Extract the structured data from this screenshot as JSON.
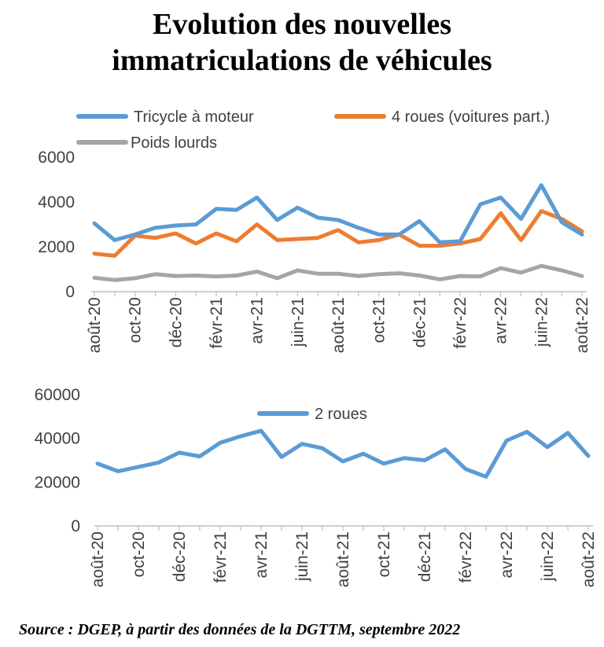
{
  "title_line1": "Evolution des nouvelles",
  "title_line2": "immatriculations de véhicules",
  "source": "Source : DGEP, à partir des données de la DGTTM, septembre 2022",
  "chart_data": [
    {
      "type": "line",
      "x": [
        "août-20",
        "sept-20",
        "oct-20",
        "nov-20",
        "déc-20",
        "janv-21",
        "févr-21",
        "mars-21",
        "avr-21",
        "mai-21",
        "juin-21",
        "juil-21",
        "août-21",
        "sept-21",
        "oct-21",
        "nov-21",
        "déc-21",
        "janv-22",
        "févr-22",
        "mars-22",
        "avr-22",
        "mai-22",
        "juin-22",
        "juil-22",
        "août-22"
      ],
      "tick_labels": [
        "août-20",
        "oct-20",
        "déc-20",
        "févr-21",
        "avr-21",
        "juin-21",
        "août-21",
        "oct-21",
        "déc-21",
        "févr-22",
        "avr-22",
        "juin-22",
        "août-22"
      ],
      "ylim": [
        0,
        6000
      ],
      "yticks": [
        "0",
        "2000",
        "4000",
        "6000"
      ],
      "legend_position": "top",
      "series": [
        {
          "name": "Tricycle à moteur",
          "color": "#5B9BD5",
          "values": [
            3050,
            2300,
            2550,
            2850,
            2950,
            3000,
            3700,
            3650,
            4200,
            3200,
            3750,
            3300,
            3200,
            2850,
            2550,
            2550,
            3150,
            2200,
            2250,
            3900,
            4200,
            3250,
            4750,
            3100,
            2550
          ]
        },
        {
          "name": "4 roues (voitures part.)",
          "color": "#ED7D31",
          "values": [
            1700,
            1600,
            2500,
            2400,
            2600,
            2150,
            2600,
            2250,
            3000,
            2300,
            2350,
            2400,
            2750,
            2200,
            2300,
            2550,
            2050,
            2050,
            2150,
            2350,
            3500,
            2300,
            3600,
            3250,
            2700
          ]
        },
        {
          "name": "Poids lourds",
          "color": "#A5A5A5",
          "values": [
            620,
            520,
            600,
            780,
            700,
            720,
            680,
            720,
            900,
            600,
            950,
            800,
            800,
            700,
            780,
            820,
            720,
            550,
            700,
            680,
            1050,
            850,
            1150,
            950,
            700
          ]
        }
      ]
    },
    {
      "type": "line",
      "x": [
        "août-20",
        "sept-20",
        "oct-20",
        "nov-20",
        "déc-20",
        "janv-21",
        "févr-21",
        "mars-21",
        "avr-21",
        "mai-21",
        "juin-21",
        "juil-21",
        "août-21",
        "sept-21",
        "oct-21",
        "nov-21",
        "déc-21",
        "janv-22",
        "févr-22",
        "mars-22",
        "avr-22",
        "mai-22",
        "juin-22",
        "juil-22",
        "août-22"
      ],
      "tick_labels": [
        "août-20",
        "oct-20",
        "déc-20",
        "févr-21",
        "avr-21",
        "juin-21",
        "août-21",
        "oct-21",
        "déc-21",
        "févr-22",
        "avr-22",
        "juin-22",
        "août-22"
      ],
      "ylim": [
        0,
        60000
      ],
      "yticks": [
        "0",
        "20000",
        "40000",
        "60000"
      ],
      "legend_position": "top",
      "series": [
        {
          "name": "2 roues",
          "color": "#5B9BD5",
          "values": [
            28500,
            25000,
            27000,
            29000,
            33500,
            31800,
            38000,
            41000,
            43500,
            31500,
            37500,
            35500,
            29500,
            33000,
            28500,
            31000,
            30000,
            35000,
            26000,
            22500,
            39000,
            43000,
            36000,
            42500,
            32000
          ]
        }
      ]
    }
  ]
}
